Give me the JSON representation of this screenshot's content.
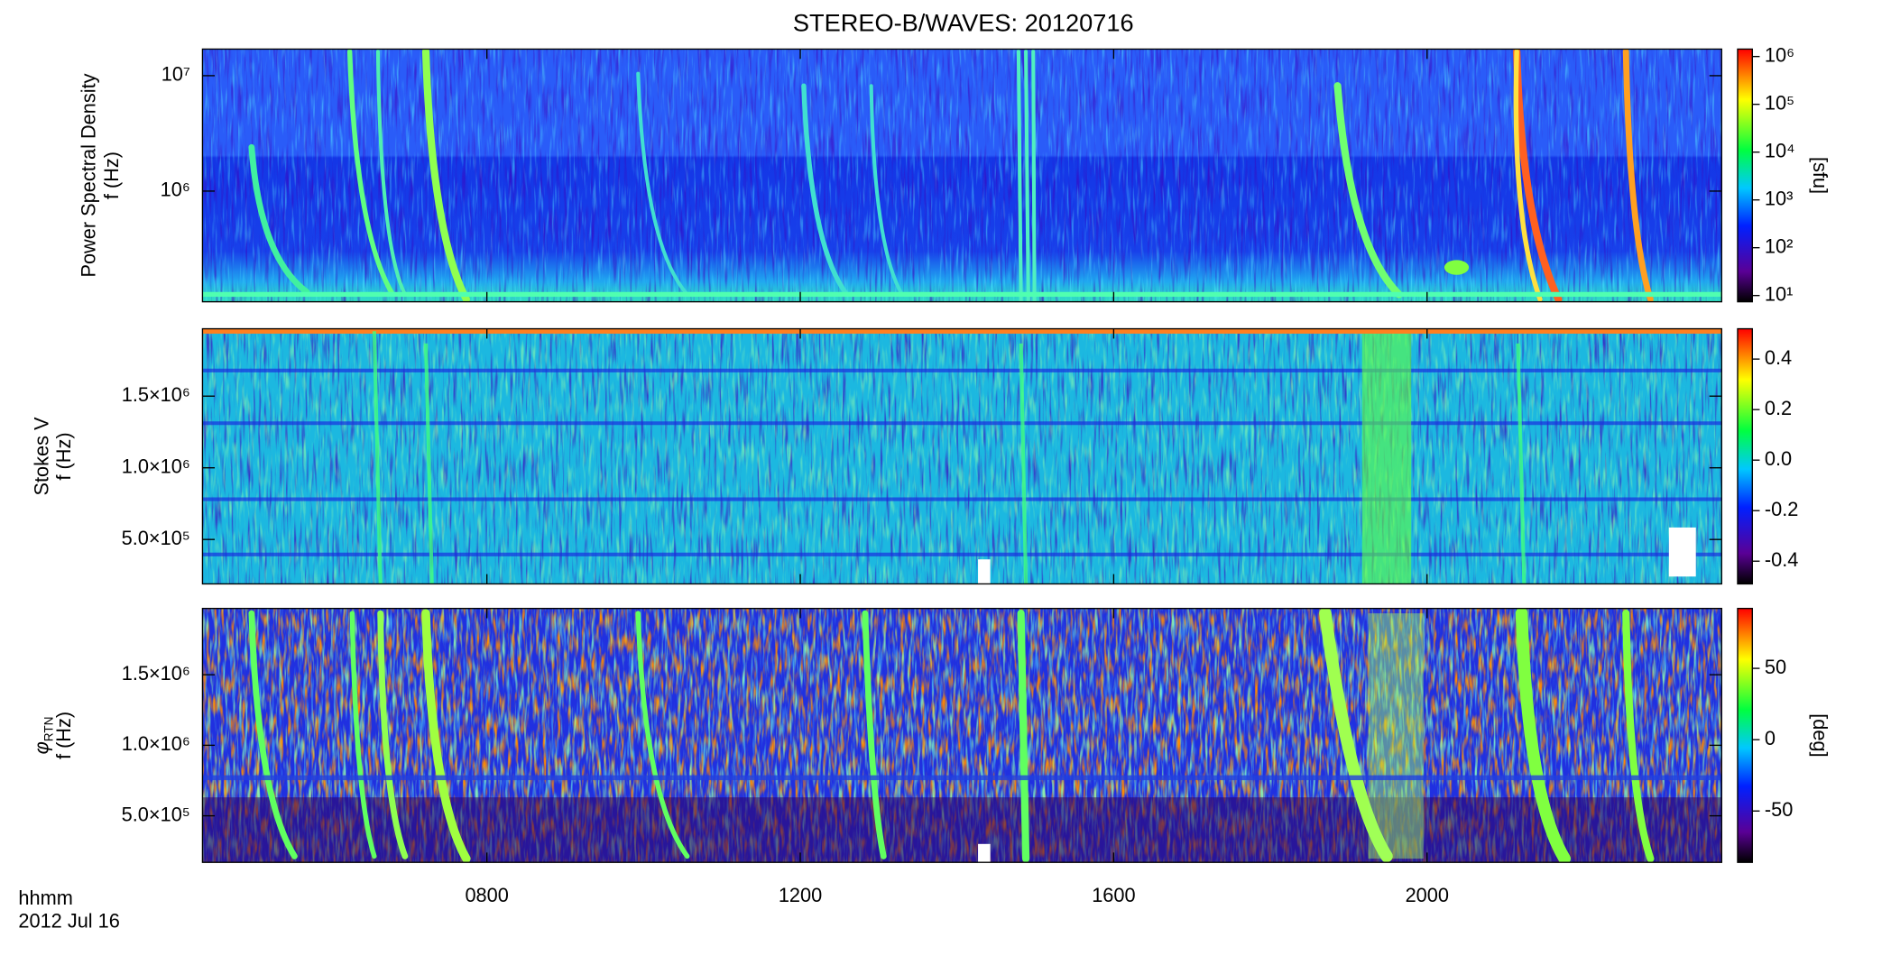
{
  "chart_data": {
    "type": "spectrogram",
    "title": "STEREO-B/WAVES: 20120716",
    "x_label": "hhmm",
    "date": "2012 Jul 16",
    "xlim": [
      4.37,
      23.76
    ],
    "xticks": [
      {
        "value": 8,
        "label": "0800"
      },
      {
        "value": 12,
        "label": "1200"
      },
      {
        "value": 16,
        "label": "1600"
      },
      {
        "value": 20,
        "label": "2000"
      }
    ],
    "panels": [
      {
        "ylabel": "Power Spectral Density",
        "ylabel2": "f (Hz)",
        "log": true,
        "ylim": [
          110000,
          17000000
        ],
        "yticks": [
          {
            "value": 1000000,
            "label": "10⁶"
          },
          {
            "value": 10000000,
            "label": "10⁷"
          }
        ],
        "clim": [
          7.4,
          1430000
        ],
        "clog": true,
        "colorbar_label": "[sfu]",
        "cticks": [
          {
            "value": 10,
            "label": "10¹"
          },
          {
            "value": 100,
            "label": "10²"
          },
          {
            "value": 1000,
            "label": "10³"
          },
          {
            "value": 10000,
            "label": "10⁴"
          },
          {
            "value": 100000,
            "label": "10⁵"
          },
          {
            "value": 1000000,
            "label": "10⁶"
          }
        ]
      },
      {
        "ylabel": "Stokes V",
        "ylabel2": "f (Hz)",
        "log": false,
        "ylim": [
          190000,
          1970000
        ],
        "yticks": [
          {
            "value": 500000,
            "label": "5.0×10⁵"
          },
          {
            "value": 1000000,
            "label": "1.0×10⁶"
          },
          {
            "value": 1500000,
            "label": "1.5×10⁶"
          }
        ],
        "clim": [
          -0.49,
          0.52
        ],
        "clog": false,
        "cticks": [
          -0.4,
          -0.2,
          {
            "value": 0,
            "label": "0.0"
          },
          0.2,
          0.4
        ]
      },
      {
        "ylabel": "φ",
        "ylabel_sub": "RTN",
        "ylabel2": "f (Hz)",
        "log": false,
        "ylim": [
          170000,
          1970000
        ],
        "yticks": [
          {
            "value": 500000,
            "label": "5.0×10⁵"
          },
          {
            "value": 1000000,
            "label": "1.0×10⁶"
          },
          {
            "value": 1500000,
            "label": "1.5×10⁶"
          }
        ],
        "clim": [
          -86,
          92
        ],
        "clog": false,
        "colorbar_label": "[deg]",
        "cticks": [
          -50,
          0,
          50
        ]
      }
    ]
  }
}
